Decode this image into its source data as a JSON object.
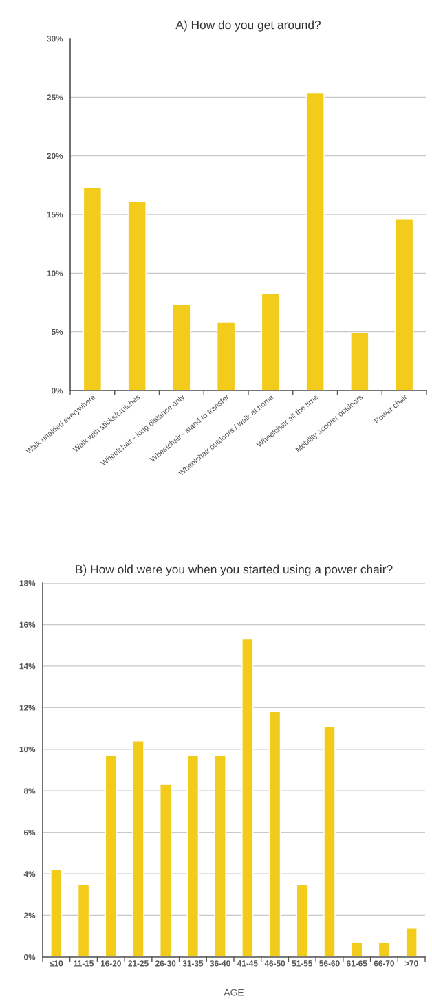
{
  "chart_data": [
    {
      "type": "bar",
      "title": "A) How do you get around?",
      "categories": [
        "Walk unaided everywhere",
        "Walk with sticks/crutches",
        "Wheelchair - long distance only",
        "Wheelchair - stand to transfer",
        "Wheelchair outdoors / walk at home",
        "Wheelchair all the time",
        "Mobility scooter outdoors",
        "Power chair"
      ],
      "values": [
        17.3,
        16.1,
        7.3,
        5.8,
        8.3,
        25.4,
        4.9,
        14.6
      ],
      "color": "#f2cb1b",
      "ylim": [
        0,
        30
      ],
      "yticks": [
        {
          "value": 0,
          "label": "0%"
        },
        {
          "value": 5,
          "label": "5%"
        },
        {
          "value": 10,
          "label": "10%"
        },
        {
          "value": 15,
          "label": "15%"
        },
        {
          "value": 20,
          "label": "20%"
        },
        {
          "value": 25,
          "label": "25%"
        },
        {
          "value": 30,
          "label": "30%"
        }
      ],
      "grid": "y"
    },
    {
      "type": "bar",
      "title": "B) How old were you when you started using a power chair?",
      "xlabel": "AGE",
      "categories": [
        "≤10",
        "11-15",
        "16-20",
        "21-25",
        "26-30",
        "31-35",
        "36-40",
        "41-45",
        "46-50",
        "51-55",
        "56-60",
        "61-65",
        "66-70",
        ">70"
      ],
      "values": [
        4.2,
        3.5,
        9.7,
        10.4,
        8.3,
        9.7,
        9.7,
        15.3,
        11.8,
        3.5,
        11.1,
        0.7,
        0.7,
        1.4
      ],
      "color": "#f2cb1b",
      "ylim": [
        0,
        18
      ],
      "yticks": [
        {
          "value": 0,
          "label": "0%"
        },
        {
          "value": 2,
          "label": "2%"
        },
        {
          "value": 4,
          "label": "4%"
        },
        {
          "value": 6,
          "label": "6%"
        },
        {
          "value": 8,
          "label": "8%"
        },
        {
          "value": 10,
          "label": "10%"
        },
        {
          "value": 12,
          "label": "12%"
        },
        {
          "value": 14,
          "label": "14%"
        },
        {
          "value": 16,
          "label": "16%"
        },
        {
          "value": 18,
          "label": "18%"
        }
      ],
      "grid": "y"
    }
  ]
}
